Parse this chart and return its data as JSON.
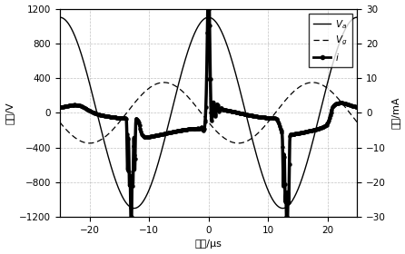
{
  "title": "",
  "xlabel": "时间/μs",
  "ylabel_left": "电压/V",
  "ylabel_right": "电流/mA",
  "xlim": [
    -25,
    25
  ],
  "ylim_left": [
    -1200,
    1200
  ],
  "ylim_right": [
    -30,
    30
  ],
  "yticks_left": [
    -1200,
    -800,
    -400,
    0,
    400,
    800,
    1200
  ],
  "yticks_right": [
    -30,
    -20,
    -10,
    0,
    10,
    20,
    30
  ],
  "xticks": [
    -20,
    -10,
    0,
    10,
    20
  ],
  "legend_labels": [
    "$V_a$",
    "$V_g$",
    "$i$"
  ],
  "background_color": "#ffffff",
  "grid_color": "#999999"
}
